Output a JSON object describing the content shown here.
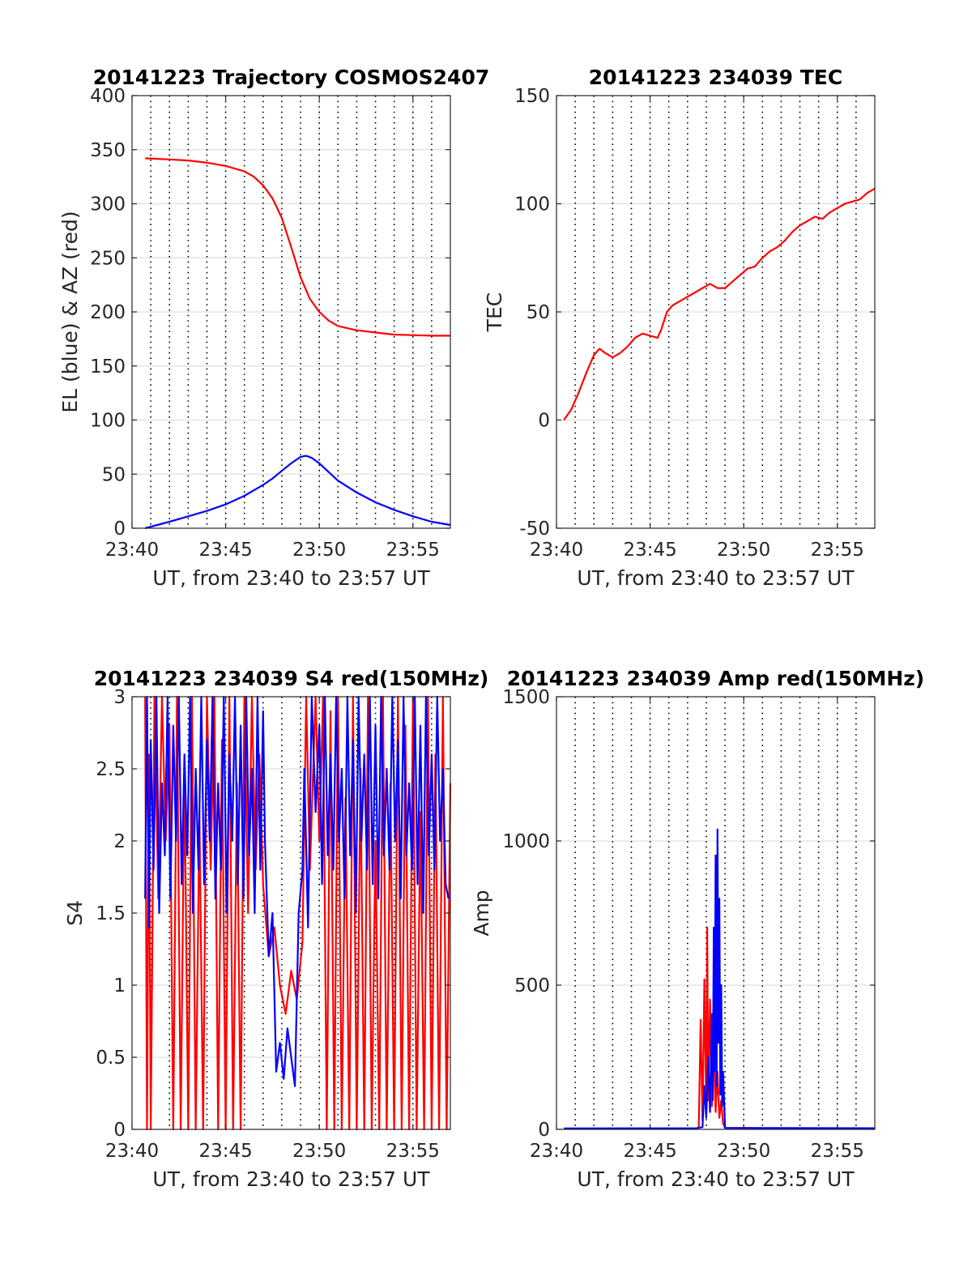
{
  "chart_data": [
    {
      "type": "line",
      "title": "20141223 Trajectory COSMOS2407",
      "xlabel": "UT, from 23:40 to 23:57 UT",
      "ylabel": "EL (blue) & AZ (red)",
      "x_range_minutes": [
        0,
        17
      ],
      "xticks": [
        0,
        5,
        10,
        15
      ],
      "xtick_labels": [
        "23:40",
        "23:45",
        "23:50",
        "23:55"
      ],
      "ylim": [
        0,
        400
      ],
      "yticks": [
        0,
        50,
        100,
        150,
        200,
        250,
        300,
        350,
        400
      ],
      "ytick_labels": [
        "0",
        "50",
        "100",
        "150",
        "200",
        "250",
        "300",
        "350",
        "400"
      ],
      "grid": true,
      "vertical_dotted_minutes": [
        1.0,
        2.0,
        3.0,
        4.0,
        5.0,
        6.0,
        7.0,
        8.0,
        9.0,
        10.0,
        11.0,
        12.0,
        13.0,
        14.0,
        15.0,
        16.0
      ],
      "series": [
        {
          "color": "#ff0000",
          "x": [
            0.7,
            2.0,
            3.0,
            4.0,
            5.0,
            6.0,
            6.5,
            7.0,
            7.5,
            8.0,
            8.5,
            9.0,
            9.5,
            10.0,
            10.5,
            11.0,
            12.0,
            13.0,
            14.0,
            15.0,
            16.0,
            17.0
          ],
          "y": [
            342,
            341,
            340,
            338,
            335,
            330,
            325,
            317,
            305,
            287,
            260,
            232,
            212,
            200,
            192,
            187,
            183,
            181,
            179,
            178.5,
            178,
            178
          ]
        },
        {
          "color": "#0000ff",
          "x": [
            0.7,
            2.0,
            3.0,
            4.0,
            5.0,
            6.0,
            7.0,
            7.5,
            8.0,
            8.5,
            9.0,
            9.3,
            9.6,
            10.0,
            10.5,
            11.0,
            12.0,
            13.0,
            14.0,
            15.0,
            16.0,
            17.0
          ],
          "y": [
            0,
            6,
            11,
            16,
            22,
            30,
            40,
            46,
            53,
            60,
            66,
            67,
            65,
            60,
            52,
            44,
            33,
            24,
            17,
            11,
            6,
            3
          ]
        }
      ]
    },
    {
      "type": "line",
      "title": "20141223 234039 TEC",
      "xlabel": "UT, from 23:40 to 23:57 UT",
      "ylabel": "TEC",
      "x_range_minutes": [
        0,
        17
      ],
      "xticks": [
        0,
        5,
        10,
        15
      ],
      "xtick_labels": [
        "23:40",
        "23:45",
        "23:50",
        "23:55"
      ],
      "ylim": [
        -50,
        150
      ],
      "yticks": [
        -50,
        0,
        50,
        100,
        150
      ],
      "ytick_labels": [
        "-50",
        "0",
        "50",
        "100",
        "150"
      ],
      "grid": true,
      "vertical_dotted_minutes": [
        1.0,
        2.0,
        3.0,
        4.0,
        5.0,
        6.0,
        7.0,
        8.0,
        9.0,
        10.0,
        11.0,
        12.0,
        13.0,
        14.0,
        15.0,
        16.0
      ],
      "series": [
        {
          "color": "#ff0000",
          "x": [
            0.4,
            0.8,
            1.2,
            1.6,
            2.0,
            2.3,
            2.6,
            3.0,
            3.4,
            3.8,
            4.2,
            4.6,
            5.0,
            5.4,
            5.6,
            5.9,
            6.2,
            6.6,
            7.0,
            7.4,
            7.8,
            8.2,
            8.6,
            9.0,
            9.4,
            9.8,
            10.2,
            10.6,
            11.0,
            11.4,
            11.8,
            12.2,
            12.6,
            13.0,
            13.4,
            13.8,
            14.2,
            14.6,
            15.0,
            15.4,
            15.8,
            16.2,
            16.6,
            17.0
          ],
          "y": [
            0,
            5,
            13,
            22,
            30,
            33,
            31,
            29,
            31,
            34,
            38,
            40,
            39,
            38,
            42,
            50,
            53,
            55,
            57,
            59,
            61,
            63,
            61,
            61,
            64,
            67,
            70,
            71,
            75,
            78,
            80,
            83,
            87,
            90,
            92,
            94,
            93,
            96,
            98,
            100,
            101,
            102,
            105,
            107
          ]
        }
      ]
    },
    {
      "type": "line",
      "title": "20141223 234039 S4 red(150MHz)",
      "xlabel": "UT, from 23:40 to 23:57 UT",
      "ylabel": "S4",
      "x_range_minutes": [
        0,
        17
      ],
      "xticks": [
        0,
        5,
        10,
        15
      ],
      "xtick_labels": [
        "23:40",
        "23:45",
        "23:50",
        "23:55"
      ],
      "ylim": [
        0,
        3
      ],
      "yticks": [
        0,
        0.5,
        1,
        1.5,
        2,
        2.5,
        3
      ],
      "ytick_labels": [
        "0",
        "0.5",
        "1",
        "1.5",
        "2",
        "2.5",
        "3"
      ],
      "grid": true,
      "vertical_dotted_minutes": [
        1.0,
        2.0,
        3.0,
        4.0,
        5.0,
        6.0,
        7.0,
        8.0,
        9.0,
        10.0,
        11.0,
        12.0,
        13.0,
        14.0,
        15.0,
        16.0
      ],
      "series": [
        {
          "color": "#ff0000",
          "x": [
            0.7,
            0.8,
            0.9,
            1.0,
            1.2,
            1.4,
            1.6,
            1.8,
            2.0,
            2.2,
            2.4,
            2.6,
            2.8,
            3.0,
            3.2,
            3.4,
            3.6,
            3.8,
            4.0,
            4.2,
            4.4,
            4.6,
            4.8,
            5.0,
            5.2,
            5.4,
            5.6,
            5.8,
            6.0,
            6.2,
            6.4,
            6.6,
            6.8,
            7.0,
            7.3,
            7.6,
            7.9,
            8.2,
            8.5,
            8.8,
            9.1,
            9.3,
            9.5,
            9.8,
            10.0,
            10.2,
            10.4,
            10.6,
            10.8,
            11.0,
            11.2,
            11.4,
            11.6,
            11.8,
            12.0,
            12.2,
            12.4,
            12.6,
            12.8,
            13.0,
            13.2,
            13.4,
            13.6,
            13.8,
            14.0,
            14.2,
            14.4,
            14.6,
            14.8,
            15.0,
            15.2,
            15.4,
            15.6,
            15.8,
            16.0,
            16.2,
            16.4,
            16.6,
            16.8,
            17.0
          ],
          "y": [
            3.0,
            0.0,
            2.6,
            0.0,
            3.0,
            1.6,
            3.0,
            2.0,
            2.8,
            0.0,
            3.0,
            0.0,
            2.5,
            0.0,
            3.0,
            0.0,
            2.2,
            0.0,
            3.0,
            1.8,
            3.0,
            0.0,
            2.7,
            0.0,
            3.0,
            0.0,
            2.4,
            0.0,
            3.0,
            1.5,
            3.0,
            1.8,
            2.6,
            1.7,
            1.2,
            1.4,
            1.0,
            0.8,
            1.1,
            0.9,
            1.3,
            3.0,
            1.8,
            3.0,
            2.0,
            3.0,
            0.0,
            2.9,
            0.0,
            3.0,
            0.0,
            2.3,
            0.0,
            3.0,
            0.0,
            2.5,
            0.0,
            3.0,
            0.0,
            2.0,
            0.0,
            3.0,
            0.0,
            2.4,
            0.0,
            3.0,
            0.0,
            2.8,
            0.0,
            3.0,
            0.0,
            2.2,
            0.0,
            3.0,
            0.0,
            2.6,
            0.0,
            3.0,
            0.0,
            2.4
          ]
        },
        {
          "color": "#0000ff",
          "x": [
            0.7,
            0.8,
            0.9,
            1.0,
            1.15,
            1.3,
            1.45,
            1.6,
            1.75,
            1.9,
            2.05,
            2.2,
            2.35,
            2.5,
            2.65,
            2.8,
            2.95,
            3.1,
            3.25,
            3.4,
            3.55,
            3.7,
            3.85,
            4.0,
            4.15,
            4.3,
            4.45,
            4.6,
            4.75,
            4.9,
            5.05,
            5.2,
            5.35,
            5.5,
            5.65,
            5.8,
            5.95,
            6.1,
            6.25,
            6.4,
            6.55,
            6.7,
            6.85,
            7.0,
            7.1,
            7.3,
            7.5,
            7.7,
            7.9,
            8.1,
            8.3,
            8.5,
            8.7,
            8.9,
            9.1,
            9.2,
            9.4,
            9.6,
            9.8,
            10.0,
            10.15,
            10.3,
            10.45,
            10.6,
            10.75,
            10.9,
            11.05,
            11.2,
            11.35,
            11.5,
            11.65,
            11.8,
            11.95,
            12.1,
            12.25,
            12.4,
            12.55,
            12.7,
            12.85,
            13.0,
            13.15,
            13.3,
            13.45,
            13.6,
            13.75,
            13.9,
            14.05,
            14.2,
            14.35,
            14.5,
            14.65,
            14.8,
            14.95,
            15.1,
            15.25,
            15.4,
            15.55,
            15.7,
            15.85,
            16.0,
            16.15,
            16.3,
            16.45,
            16.6,
            16.75,
            16.9
          ],
          "y": [
            1.6,
            3.0,
            1.4,
            2.7,
            1.8,
            3.0,
            1.5,
            2.4,
            1.9,
            3.0,
            1.6,
            2.8,
            2.0,
            3.0,
            1.7,
            2.6,
            1.9,
            3.0,
            1.5,
            2.5,
            1.8,
            3.0,
            1.7,
            2.7,
            2.0,
            3.0,
            1.6,
            2.4,
            1.8,
            3.0,
            1.5,
            2.6,
            2.0,
            3.0,
            1.7,
            2.8,
            1.6,
            3.0,
            1.9,
            2.5,
            1.5,
            3.0,
            1.8,
            2.9,
            2.0,
            1.2,
            1.5,
            0.4,
            0.6,
            0.35,
            0.7,
            0.5,
            0.3,
            1.5,
            1.8,
            2.5,
            1.4,
            3.0,
            2.2,
            2.8,
            1.7,
            3.0,
            1.9,
            2.6,
            1.8,
            3.0,
            2.0,
            2.5,
            1.6,
            3.0,
            1.9,
            2.7,
            1.5,
            3.0,
            2.0,
            2.6,
            1.8,
            3.0,
            1.7,
            2.8,
            1.6,
            3.0,
            1.9,
            2.5,
            1.8,
            3.0,
            2.0,
            2.7,
            1.6,
            3.0,
            1.9,
            2.4,
            1.8,
            3.0,
            1.7,
            2.8,
            1.5,
            3.0,
            1.9,
            2.6,
            1.8,
            3.0,
            2.0,
            2.5,
            1.7,
            1.6
          ]
        }
      ]
    },
    {
      "type": "line",
      "title": "20141223 234039 Amp red(150MHz)",
      "xlabel": "UT, from 23:40 to 23:57 UT",
      "ylabel": "Amp",
      "x_range_minutes": [
        0,
        17
      ],
      "xticks": [
        0,
        5,
        10,
        15
      ],
      "xtick_labels": [
        "23:40",
        "23:45",
        "23:50",
        "23:55"
      ],
      "ylim": [
        0,
        1500
      ],
      "yticks": [
        0,
        500,
        1000,
        1500
      ],
      "ytick_labels": [
        "0",
        "500",
        "1000",
        "1500"
      ],
      "grid": true,
      "vertical_dotted_minutes": [
        1.0,
        2.0,
        3.0,
        4.0,
        5.0,
        6.0,
        7.0,
        8.0,
        9.0,
        10.0,
        11.0,
        12.0,
        13.0,
        14.0,
        15.0,
        16.0
      ],
      "series": [
        {
          "color": "#ff0000",
          "x": [
            0.4,
            7.5,
            7.6,
            7.7,
            7.8,
            7.9,
            8.0,
            8.05,
            8.1,
            8.2,
            8.3,
            8.4,
            8.5,
            8.6,
            8.7,
            8.8,
            8.9,
            9.0,
            17.0
          ],
          "y": [
            2,
            2,
            10,
            380,
            30,
            520,
            60,
            700,
            100,
            450,
            80,
            300,
            60,
            200,
            40,
            100,
            20,
            5,
            2
          ]
        },
        {
          "color": "#0000ff",
          "x": [
            0.4,
            7.5,
            7.8,
            7.9,
            8.0,
            8.1,
            8.2,
            8.3,
            8.35,
            8.4,
            8.45,
            8.5,
            8.55,
            8.6,
            8.65,
            8.7,
            8.75,
            8.8,
            8.85,
            8.9,
            9.0,
            17.0
          ],
          "y": [
            3,
            4,
            8,
            150,
            40,
            250,
            60,
            400,
            100,
            700,
            200,
            950,
            150,
            1040,
            300,
            800,
            120,
            500,
            80,
            200,
            5,
            4
          ]
        }
      ]
    }
  ]
}
